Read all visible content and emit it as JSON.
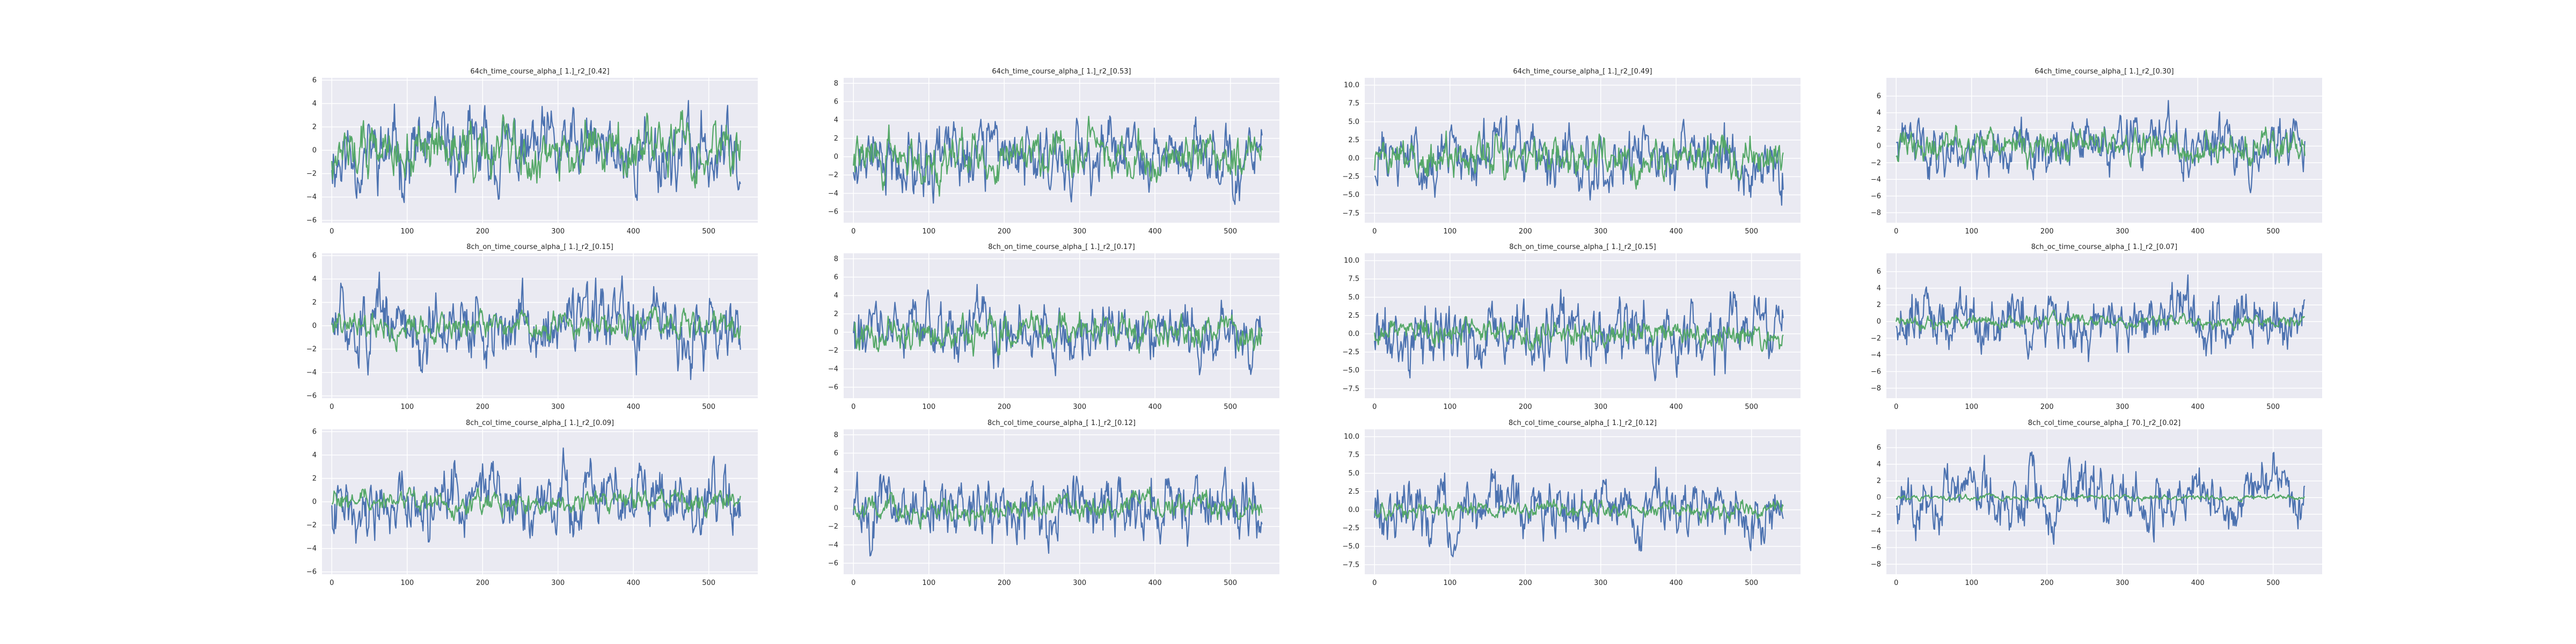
{
  "colors": {
    "background": "#ffffff",
    "axes_face": "#eaeaf2",
    "grid": "#ffffff",
    "series_data": "#4c72b0",
    "series_fit": "#55a868",
    "text": "#262626"
  },
  "chart_data": [
    {
      "type": "line",
      "title": "64ch_time_course_alpha_[ 1.]_r2_[0.42]",
      "xlim": [
        -13,
        565
      ],
      "ylim": [
        -6.2,
        6.2
      ],
      "xticks": [
        0,
        100,
        200,
        300,
        400,
        500
      ],
      "yticks": [
        -6,
        -4,
        -2,
        0,
        2,
        4,
        6
      ],
      "ytick_labels": [
        "−6",
        "−4",
        "−2",
        "0",
        "2",
        "4",
        "6"
      ],
      "grid": true,
      "n_points": 543,
      "series": [
        {
          "color": "#4c72b0",
          "amplitude": 4.6,
          "seed": 11
        },
        {
          "color": "#55a868",
          "amplitude": 3.4,
          "seed": 12
        }
      ]
    },
    {
      "type": "line",
      "title": "64ch_time_course_alpha_[ 1.]_r2_[0.53]",
      "xlim": [
        -13,
        565
      ],
      "ylim": [
        -7.2,
        8.6
      ],
      "xticks": [
        0,
        100,
        200,
        300,
        400,
        500
      ],
      "yticks": [
        -6,
        -4,
        -2,
        0,
        2,
        4,
        6,
        8
      ],
      "ytick_labels": [
        "−6",
        "−4",
        "−2",
        "0",
        "2",
        "4",
        "6",
        "8"
      ],
      "grid": true,
      "n_points": 543,
      "series": [
        {
          "color": "#4c72b0",
          "amplitude": 5.2,
          "seed": 21
        },
        {
          "color": "#55a868",
          "amplitude": 4.4,
          "seed": 22
        }
      ]
    },
    {
      "type": "line",
      "title": "64ch_time_course_alpha_[ 1.]_r2_[0.49]",
      "xlim": [
        -13,
        565
      ],
      "ylim": [
        -8.8,
        11
      ],
      "xticks": [
        0,
        100,
        200,
        300,
        400,
        500
      ],
      "yticks": [
        -7.5,
        -5,
        -2.5,
        0,
        2.5,
        5,
        7.5,
        10
      ],
      "ytick_labels": [
        "−7.5",
        "−5.0",
        "−2.5",
        "0.0",
        "2.5",
        "5.0",
        "7.5",
        "10.0"
      ],
      "grid": true,
      "n_points": 543,
      "series": [
        {
          "color": "#4c72b0",
          "amplitude": 6.4,
          "seed": 31
        },
        {
          "color": "#55a868",
          "amplitude": 4.2,
          "seed": 32
        }
      ]
    },
    {
      "type": "line",
      "title": "64ch_time_course_alpha_[ 1.]_r2_[0.30]",
      "xlim": [
        -13,
        565
      ],
      "ylim": [
        -9.2,
        8.2
      ],
      "xticks": [
        0,
        100,
        200,
        300,
        400,
        500
      ],
      "yticks": [
        -8,
        -6,
        -4,
        -2,
        0,
        2,
        4,
        6
      ],
      "ytick_labels": [
        "−8",
        "−6",
        "−4",
        "−2",
        "0",
        "2",
        "4",
        "6"
      ],
      "grid": true,
      "n_points": 543,
      "series": [
        {
          "color": "#4c72b0",
          "amplitude": 5.6,
          "seed": 41
        },
        {
          "color": "#55a868",
          "amplitude": 2.8,
          "seed": 42
        }
      ]
    },
    {
      "type": "line",
      "title": "8ch_on_time_course_alpha_[ 1.]_r2_[0.15]",
      "xlim": [
        -13,
        565
      ],
      "ylim": [
        -6.2,
        6.2
      ],
      "xticks": [
        0,
        100,
        200,
        300,
        400,
        500
      ],
      "yticks": [
        -6,
        -4,
        -2,
        0,
        2,
        4,
        6
      ],
      "ytick_labels": [
        "−6",
        "−4",
        "−2",
        "0",
        "2",
        "4",
        "6"
      ],
      "grid": true,
      "n_points": 543,
      "series": [
        {
          "color": "#4c72b0",
          "amplitude": 4.6,
          "seed": 51
        },
        {
          "color": "#55a868",
          "amplitude": 2.2,
          "seed": 52
        }
      ]
    },
    {
      "type": "line",
      "title": "8ch_on_time_course_alpha_[ 1.]_r2_[0.17]",
      "xlim": [
        -13,
        565
      ],
      "ylim": [
        -7.2,
        8.6
      ],
      "xticks": [
        0,
        100,
        200,
        300,
        400,
        500
      ],
      "yticks": [
        -6,
        -4,
        -2,
        0,
        2,
        4,
        6,
        8
      ],
      "ytick_labels": [
        "−6",
        "−4",
        "−2",
        "0",
        "2",
        "4",
        "6",
        "8"
      ],
      "grid": true,
      "n_points": 543,
      "series": [
        {
          "color": "#4c72b0",
          "amplitude": 5.2,
          "seed": 61
        },
        {
          "color": "#55a868",
          "amplitude": 2.6,
          "seed": 62
        }
      ]
    },
    {
      "type": "line",
      "title": "8ch_on_time_course_alpha_[ 1.]_r2_[0.15]",
      "xlim": [
        -13,
        565
      ],
      "ylim": [
        -8.8,
        11
      ],
      "xticks": [
        0,
        100,
        200,
        300,
        400,
        500
      ],
      "yticks": [
        -7.5,
        -5,
        -2.5,
        0,
        2.5,
        5,
        7.5,
        10
      ],
      "ytick_labels": [
        "−7.5",
        "−5.0",
        "−2.5",
        "0.0",
        "2.5",
        "5.0",
        "7.5",
        "10.0"
      ],
      "grid": true,
      "n_points": 543,
      "series": [
        {
          "color": "#4c72b0",
          "amplitude": 6.4,
          "seed": 71
        },
        {
          "color": "#55a868",
          "amplitude": 2.4,
          "seed": 72
        }
      ]
    },
    {
      "type": "line",
      "title": "8ch_oc_time_course_alpha_[ 1.]_r2_[0.07]",
      "xlim": [
        -13,
        565
      ],
      "ylim": [
        -9.2,
        8.2
      ],
      "xticks": [
        0,
        100,
        200,
        300,
        400,
        500
      ],
      "yticks": [
        -8,
        -6,
        -4,
        -2,
        0,
        2,
        4,
        6
      ],
      "ytick_labels": [
        "−8",
        "−6",
        "−4",
        "−2",
        "0",
        "2",
        "4",
        "6"
      ],
      "grid": true,
      "n_points": 543,
      "series": [
        {
          "color": "#4c72b0",
          "amplitude": 5.6,
          "seed": 81
        },
        {
          "color": "#55a868",
          "amplitude": 1.4,
          "seed": 82
        }
      ]
    },
    {
      "type": "line",
      "title": "8ch_col_time_course_alpha_[ 1.]_r2_[0.09]",
      "xlim": [
        -13,
        565
      ],
      "ylim": [
        -6.2,
        6.2
      ],
      "xticks": [
        0,
        100,
        200,
        300,
        400,
        500
      ],
      "yticks": [
        -6,
        -4,
        -2,
        0,
        2,
        4,
        6
      ],
      "ytick_labels": [
        "−6",
        "−4",
        "−2",
        "0",
        "2",
        "4",
        "6"
      ],
      "grid": true,
      "n_points": 543,
      "series": [
        {
          "color": "#4c72b0",
          "amplitude": 4.6,
          "seed": 91
        },
        {
          "color": "#55a868",
          "amplitude": 1.6,
          "seed": 92
        }
      ]
    },
    {
      "type": "line",
      "title": "8ch_col_time_course_alpha_[ 1.]_r2_[0.12]",
      "xlim": [
        -13,
        565
      ],
      "ylim": [
        -7.2,
        8.6
      ],
      "xticks": [
        0,
        100,
        200,
        300,
        400,
        500
      ],
      "yticks": [
        -6,
        -4,
        -2,
        0,
        2,
        4,
        6,
        8
      ],
      "ytick_labels": [
        "−6",
        "−4",
        "−2",
        "0",
        "2",
        "4",
        "6",
        "8"
      ],
      "grid": true,
      "n_points": 543,
      "series": [
        {
          "color": "#4c72b0",
          "amplitude": 5.2,
          "seed": 101
        },
        {
          "color": "#55a868",
          "amplitude": 2.3,
          "seed": 102
        }
      ]
    },
    {
      "type": "line",
      "title": "8ch_col_time_course_alpha_[ 1.]_r2_[0.12]",
      "xlim": [
        -13,
        565
      ],
      "ylim": [
        -8.8,
        11
      ],
      "xticks": [
        0,
        100,
        200,
        300,
        400,
        500
      ],
      "yticks": [
        -7.5,
        -5,
        -2.5,
        0,
        2.5,
        5,
        7.5,
        10
      ],
      "ytick_labels": [
        "−7.5",
        "−5.0",
        "−2.5",
        "0.0",
        "2.5",
        "5.0",
        "7.5",
        "10.0"
      ],
      "grid": true,
      "n_points": 543,
      "series": [
        {
          "color": "#4c72b0",
          "amplitude": 6.4,
          "seed": 111
        },
        {
          "color": "#55a868",
          "amplitude": 1.8,
          "seed": 112
        }
      ]
    },
    {
      "type": "line",
      "title": "8ch_col_time_course_alpha_[ 70.]_r2_[0.02]",
      "xlim": [
        -13,
        565
      ],
      "ylim": [
        -9.2,
        8.2
      ],
      "xticks": [
        0,
        100,
        200,
        300,
        400,
        500
      ],
      "yticks": [
        -8,
        -6,
        -4,
        -2,
        0,
        2,
        4,
        6
      ],
      "ytick_labels": [
        "−8",
        "−6",
        "−4",
        "−2",
        "0",
        "2",
        "4",
        "6"
      ],
      "grid": true,
      "n_points": 543,
      "series": [
        {
          "color": "#4c72b0",
          "amplitude": 5.6,
          "seed": 121
        },
        {
          "color": "#55a868",
          "amplitude": 0.5,
          "seed": 122
        }
      ]
    }
  ]
}
